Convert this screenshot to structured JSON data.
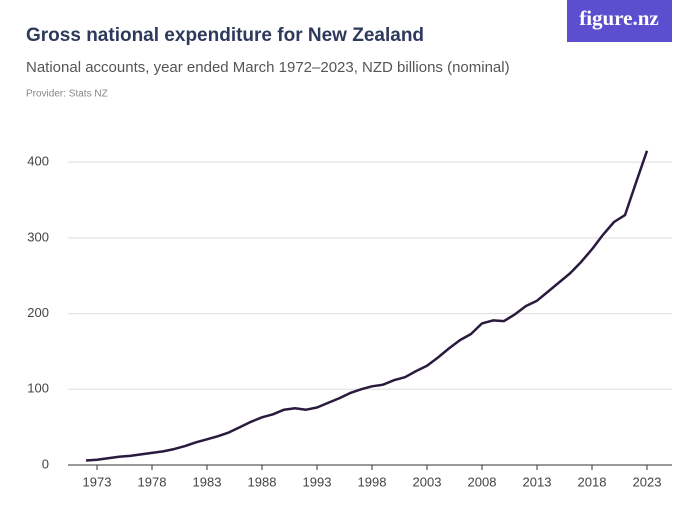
{
  "logo": "figure.nz",
  "chart_data": {
    "type": "line",
    "title": "Gross national expenditure for New Zealand",
    "subtitle": "National accounts, year ended March 1972–2023, NZD billions (nominal)",
    "provider": "Provider: Stats NZ",
    "x": [
      1972,
      1973,
      1974,
      1975,
      1976,
      1977,
      1978,
      1979,
      1980,
      1981,
      1982,
      1983,
      1984,
      1985,
      1986,
      1987,
      1988,
      1989,
      1990,
      1991,
      1992,
      1993,
      1994,
      1995,
      1996,
      1997,
      1998,
      1999,
      2000,
      2001,
      2002,
      2003,
      2004,
      2005,
      2006,
      2007,
      2008,
      2009,
      2010,
      2011,
      2012,
      2013,
      2014,
      2015,
      2016,
      2017,
      2018,
      2019,
      2020,
      2021,
      2022,
      2023
    ],
    "series": [
      {
        "name": "Gross national expenditure",
        "color": "#2a1a3d",
        "values": [
          6,
          7,
          9,
          11,
          12,
          14,
          16,
          18,
          21,
          25,
          30,
          34,
          38,
          43,
          50,
          57,
          63,
          67,
          73,
          75,
          73,
          76,
          82,
          88,
          95,
          100,
          104,
          106,
          112,
          116,
          124,
          131,
          142,
          154,
          165,
          173,
          187,
          191,
          190,
          199,
          210,
          217,
          229,
          241,
          253,
          268,
          285,
          304,
          321,
          330,
          373,
          415
        ]
      }
    ],
    "xlim": [
      1970,
      2025
    ],
    "xticks": [
      1973,
      1978,
      1983,
      1988,
      1993,
      1998,
      2003,
      2008,
      2013,
      2018,
      2023
    ],
    "ylim": [
      0,
      420
    ],
    "yticks": [
      0,
      100,
      200,
      300,
      400
    ],
    "grid": true
  }
}
